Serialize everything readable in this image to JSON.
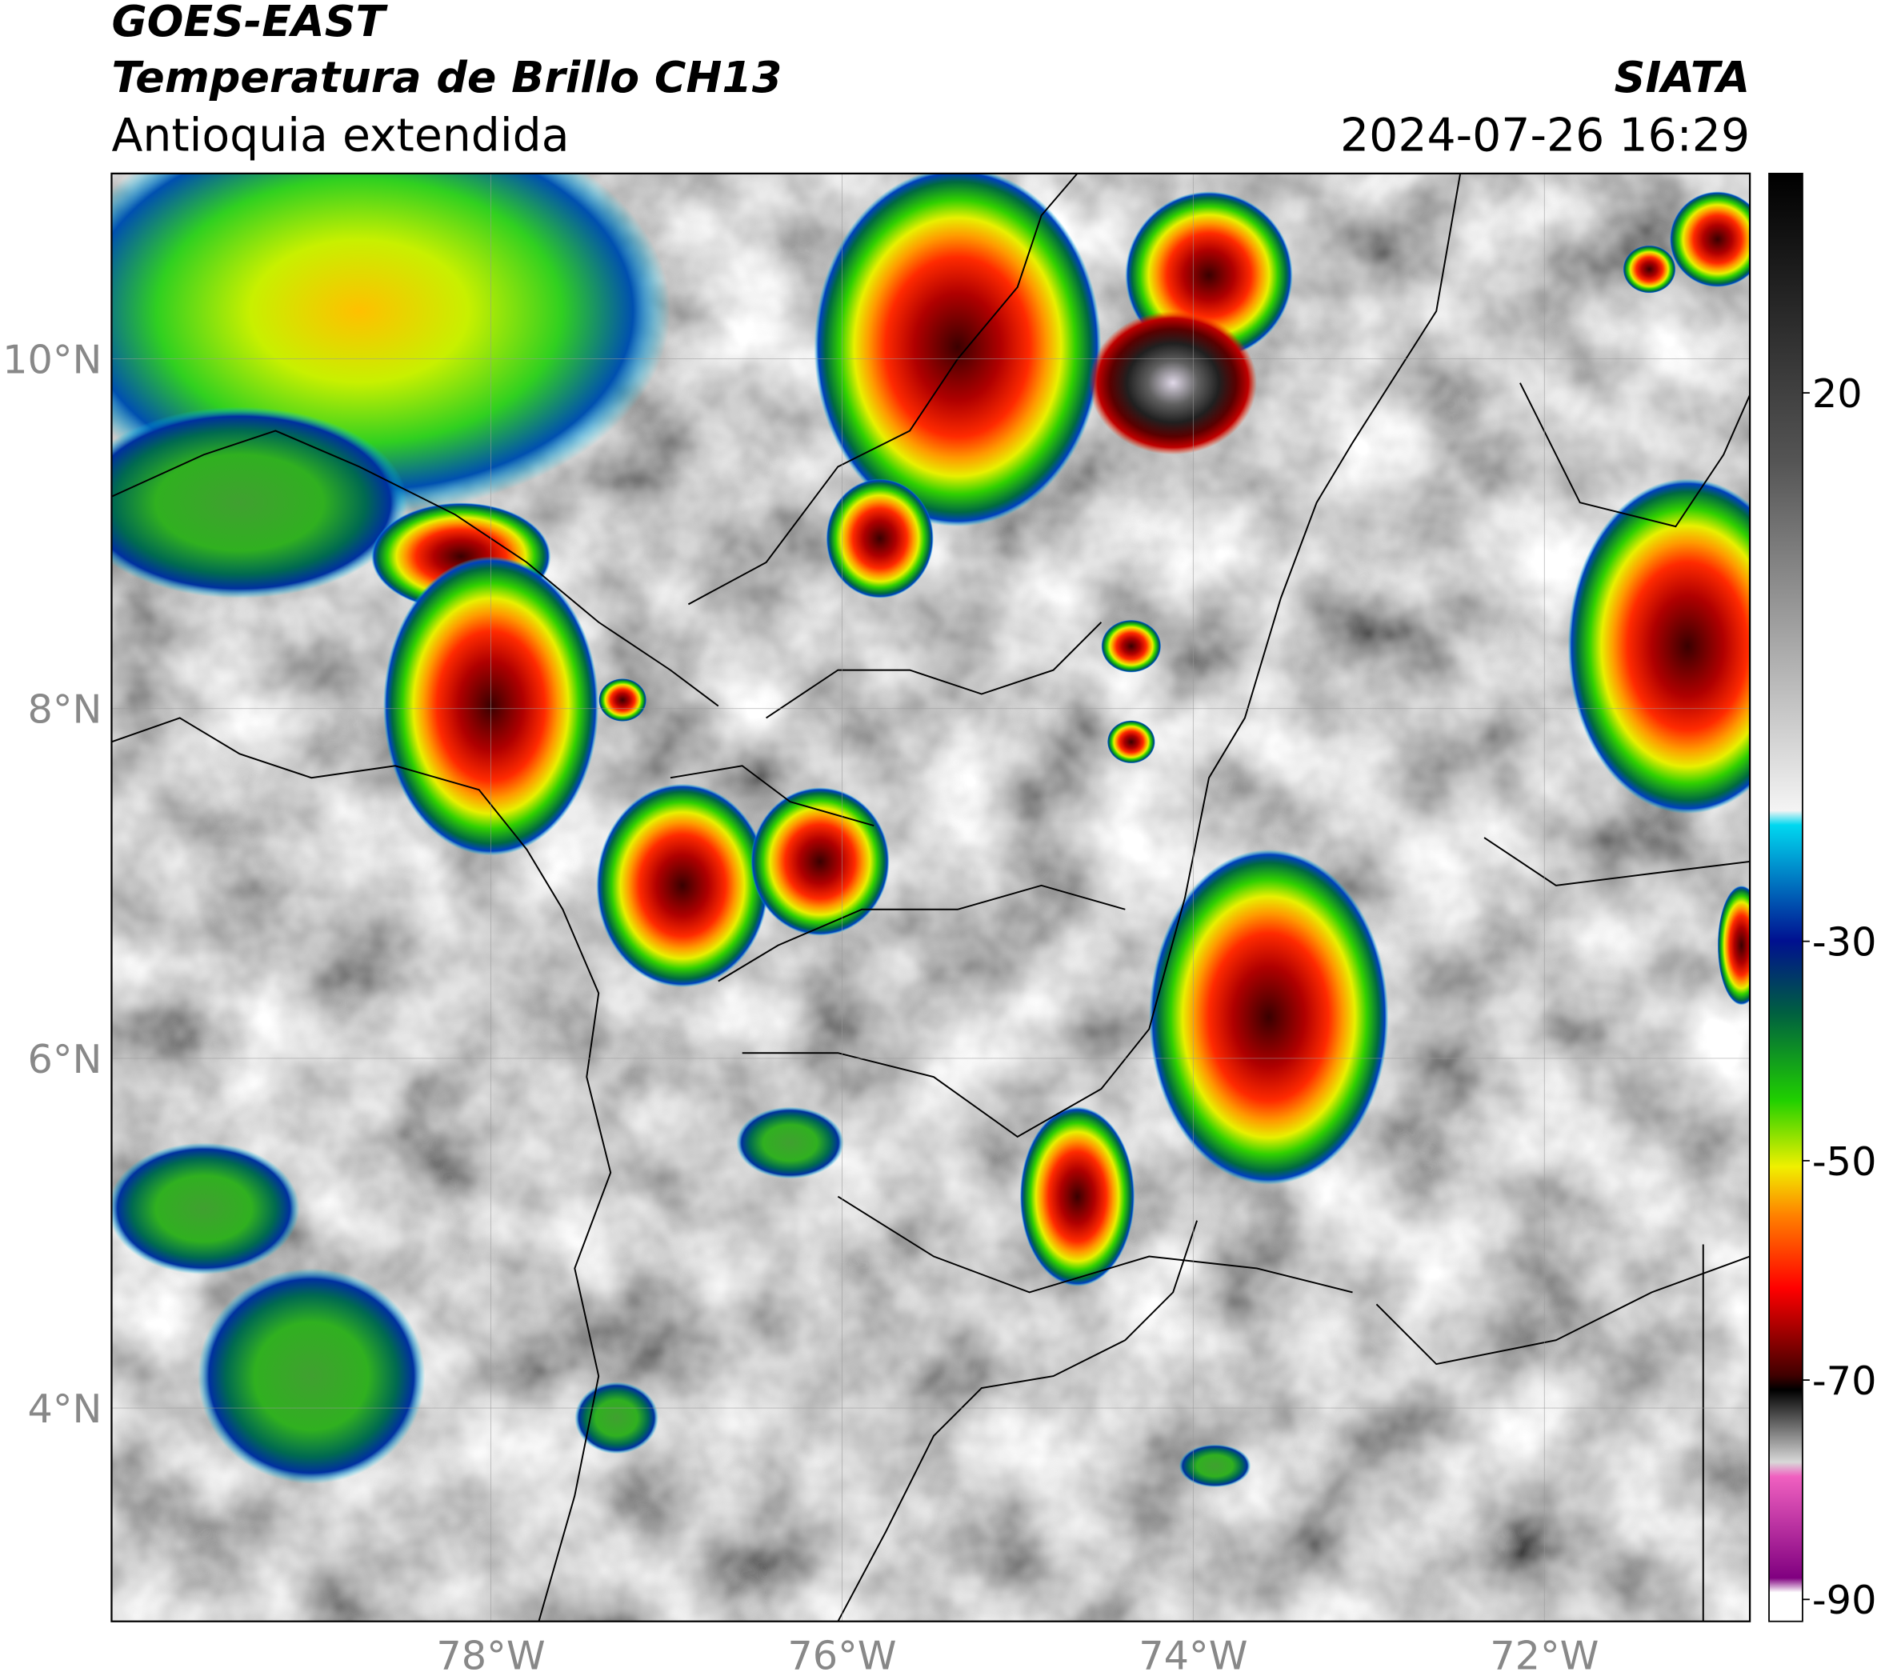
{
  "header": {
    "title": "GOES-EAST",
    "subtitle": "Temperatura de Brillo CH13",
    "region": "Antioquia extendida",
    "source": "SIATA",
    "datetime": "2024-07-26 16:29"
  },
  "map": {
    "lat_lim": [
      2.78,
      11.06
    ],
    "lon_lim": [
      -80.16,
      -70.83
    ],
    "lat_ticks": [
      {
        "value": 10,
        "label": "10°N"
      },
      {
        "value": 8,
        "label": "8°N"
      },
      {
        "value": 6,
        "label": "6°N"
      },
      {
        "value": 4,
        "label": "4°N"
      }
    ],
    "lon_ticks": [
      {
        "value": -78,
        "label": "78°W"
      },
      {
        "value": -76,
        "label": "76°W"
      },
      {
        "value": -74,
        "label": "74°W"
      },
      {
        "value": -72,
        "label": "72°W"
      }
    ]
  },
  "colorbar": {
    "lim": [
      -92,
      40
    ],
    "ticks": [
      20,
      -30,
      -50,
      -70,
      -90
    ]
  }
}
